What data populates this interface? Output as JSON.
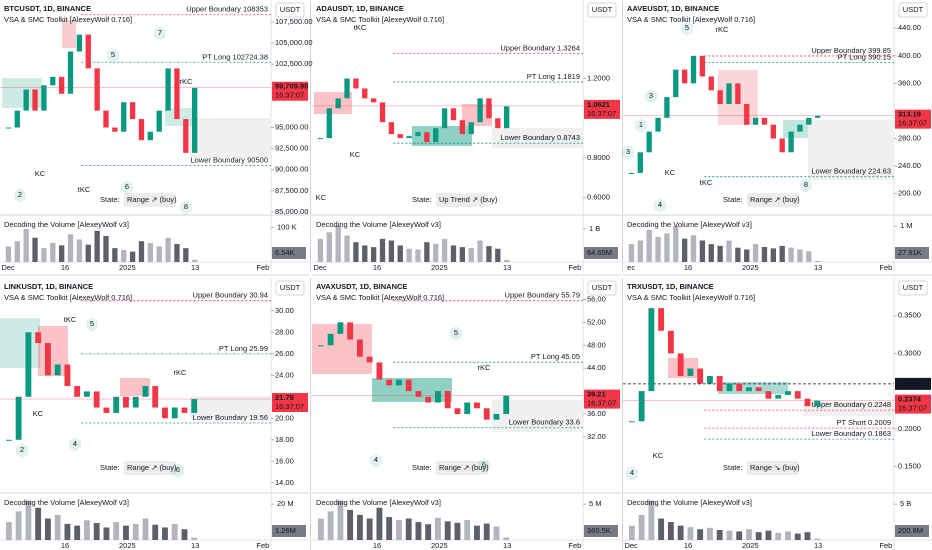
{
  "panels": [
    {
      "title": "BTCUSDT, 1D, BINANCE",
      "indicator": "VSA & SMC Toolkit [AlexeyWolf 0.716]",
      "currency": "USDT",
      "ylim": [
        84640,
        110100
      ],
      "yticks": [
        {
          "value": 107500,
          "label": "107,500.00"
        },
        {
          "value": 105000,
          "label": "105,000.00"
        },
        {
          "value": 102500,
          "label": "102,500.00"
        },
        {
          "value": 95000,
          "label": "95,000.00"
        },
        {
          "value": 92500,
          "label": "92,500.00"
        },
        {
          "value": 90000,
          "label": "90,000.00"
        },
        {
          "value": 87500,
          "label": "87,500.00"
        },
        {
          "value": 85000,
          "label": "85,000.00"
        }
      ],
      "price": {
        "value": 99709.9,
        "label": "99,709.90"
      },
      "timer": "16:37:07",
      "annotations": [
        {
          "text": "Upper Boundary 108353",
          "value": 108353,
          "color": "#f23645"
        },
        {
          "text": "PT Long 102724.38",
          "value": 102724.38,
          "color": "#089981"
        },
        {
          "text": "Lower Boundary 90500",
          "value": 90500,
          "color": "#089981"
        }
      ],
      "markers": [
        "2",
        "5",
        "7",
        "6",
        "8",
        "KC",
        "tKC",
        "rKC"
      ],
      "state_label": "State:",
      "state": "Range ↗ (buy)",
      "state_color": "#131722",
      "volume_title": "Decoding the Volume [AlexeyWolf v3]",
      "vlim": [
        0,
        124000
      ],
      "vticks": [
        {
          "value": 100000,
          "label": "100 K"
        }
      ],
      "volume_label": "6.54K",
      "xlabels": [
        "Dec",
        "16",
        "2025",
        "13",
        "Feb"
      ],
      "closes": [
        95000,
        97000,
        99500,
        97000,
        100000,
        101000,
        99000,
        104000,
        106000,
        102000,
        97000,
        95000,
        94500,
        98000,
        96000,
        93500,
        94500,
        97000,
        102000,
        96000,
        92000,
        99700
      ],
      "volumes": [
        45000,
        60000,
        95000,
        70000,
        40000,
        55000,
        48000,
        80000,
        65000,
        50000,
        90000,
        75000,
        40000,
        35000,
        30000,
        60000,
        55000,
        45000,
        70000,
        52000,
        40000,
        6540
      ]
    },
    {
      "title": "ADAUSDT, 1D, BINANCE",
      "indicator": "VSA & SMC Toolkit [AlexeyWolf 0.716]",
      "currency": "USDT",
      "ylim": [
        0.513,
        1.595
      ],
      "yticks": [
        {
          "value": 1.2,
          "label": "1.2000"
        },
        {
          "value": 0.8,
          "label": "0.8000"
        },
        {
          "value": 0.6,
          "label": "0.6000"
        }
      ],
      "price": {
        "value": 1.0621,
        "label": "1.0621"
      },
      "timer": "16:37:07",
      "annotations": [
        {
          "text": "Upper Boundary 1.3264",
          "value": 1.3264,
          "color": "#f23645"
        },
        {
          "text": "PT Long 1.1819",
          "value": 1.1819,
          "color": "#089981"
        },
        {
          "text": "Lower Boundary 0.8743",
          "value": 0.8743,
          "color": "#089981"
        }
      ],
      "markers": [
        "tKC",
        "KC",
        "KC"
      ],
      "state_label": "State:",
      "state": "Up Trend ↗ (buy)",
      "state_color": "#089981",
      "volume_title": "Decoding the Volume [AlexeyWolf v3]",
      "vlim": [
        0,
        1300000000
      ],
      "vticks": [
        {
          "value": 1000000000,
          "label": "1 B"
        }
      ],
      "volume_label": "64.65M",
      "xlabels": [
        "Dec",
        "16",
        "2025",
        "13",
        "Feb"
      ],
      "closes": [
        0.9,
        1.05,
        1.1,
        1.2,
        1.15,
        1.1,
        1.08,
        0.98,
        0.92,
        0.9,
        0.91,
        0.93,
        0.88,
        0.95,
        1.05,
        0.99,
        0.92,
        0.98,
        1.1,
        1.0,
        0.95,
        1.06
      ],
      "volumes": [
        700000000,
        900000000,
        1100000000,
        800000000,
        600000000,
        500000000,
        450000000,
        700000000,
        650000000,
        500000000,
        400000000,
        380000000,
        600000000,
        550000000,
        700000000,
        500000000,
        450000000,
        420000000,
        650000000,
        480000000,
        400000000,
        64650000
      ]
    },
    {
      "title": "AAVEUSDT, 1D, BINANCE",
      "indicator": "VSA & SMC Toolkit [AlexeyWolf 0.716]",
      "currency": "USDT",
      "ylim": [
        169,
        481
      ],
      "yticks": [
        {
          "value": 440,
          "label": "440.00"
        },
        {
          "value": 400,
          "label": "400.00"
        },
        {
          "value": 360,
          "label": "360.00"
        },
        {
          "value": 280,
          "label": "280.00"
        },
        {
          "value": 240,
          "label": "240.00"
        },
        {
          "value": 200,
          "label": "200.00"
        }
      ],
      "price": {
        "value": 313.19,
        "label": "313.19"
      },
      "timer": "16:37:07",
      "annotations": [
        {
          "text": "Upper Boundary 399.85",
          "value": 399.85,
          "color": "#f23645"
        },
        {
          "text": "PT Long 390.15",
          "value": 390.15,
          "color": "#089981"
        },
        {
          "text": "Lower Boundary 224.63",
          "value": 224.63,
          "color": "#089981"
        }
      ],
      "markers": [
        "5",
        "3",
        "1",
        "3",
        "4",
        "rKC",
        "KC",
        "tKC",
        "8"
      ],
      "state_label": "State:",
      "state": "Range ↗ (buy)",
      "state_color": "#131722",
      "volume_title": "Decoding the Volume [AlexeyWolf v3]",
      "vlim": [
        0,
        1200000
      ],
      "vticks": [
        {
          "value": 1000000,
          "label": "1 M"
        }
      ],
      "volume_label": "27.91K",
      "xlabels": [
        "ec",
        "16",
        "2025",
        "13",
        "Feb"
      ],
      "closes": [
        230,
        260,
        290,
        310,
        340,
        380,
        360,
        400,
        370,
        350,
        330,
        360,
        330,
        300,
        310,
        300,
        280,
        260,
        290,
        300,
        310,
        313
      ],
      "volumes": [
        500000,
        600000,
        900000,
        700000,
        800000,
        1000000,
        650000,
        750000,
        600000,
        500000,
        450000,
        600000,
        400000,
        350000,
        500000,
        420000,
        380000,
        450000,
        400000,
        350000,
        300000,
        27910
      ]
    },
    {
      "title": "LINKUSDT, 1D, BINANCE",
      "indicator": "VSA & SMC Toolkit [AlexeyWolf 0.716]",
      "currency": "USDT",
      "ylim": [
        13.05,
        33.05
      ],
      "yticks": [
        {
          "value": 30,
          "label": "30.00"
        },
        {
          "value": 28,
          "label": "28.00"
        },
        {
          "value": 26,
          "label": "26.00"
        },
        {
          "value": 24,
          "label": "24.00"
        },
        {
          "value": 20,
          "label": "20.00"
        },
        {
          "value": 18,
          "label": "18.00"
        },
        {
          "value": 16,
          "label": "16.00"
        },
        {
          "value": 14,
          "label": "14.00"
        }
      ],
      "price": {
        "value": 21.79,
        "label": "21.79"
      },
      "timer": "16:37:07",
      "annotations": [
        {
          "text": "Upper Boundary 30.94",
          "value": 30.94,
          "color": "#f23645"
        },
        {
          "text": "PT Long 25.99",
          "value": 25.99,
          "color": "#089981"
        },
        {
          "text": "Lower Boundary 19.56",
          "value": 19.56,
          "color": "#089981"
        }
      ],
      "markers": [
        "2",
        "4",
        "5",
        "tKC",
        "KC",
        "rKC",
        "6"
      ],
      "state_label": "State:",
      "state": "Range ↗ (buy)",
      "state_color": "#131722",
      "volume_title": "Decoding the Volume [AlexeyWolf v3]",
      "vlim": [
        0,
        24000000
      ],
      "vticks": [
        {
          "value": 20000000,
          "label": "20 M"
        }
      ],
      "volume_label": "1.26M",
      "xlabels": [
        "16",
        "2025",
        "13",
        "Feb"
      ],
      "closes": [
        18,
        22,
        28,
        27,
        24,
        25,
        23,
        22,
        22.5,
        21,
        20.5,
        22,
        21,
        22,
        23,
        21,
        20,
        21,
        20.5,
        21.79
      ],
      "volumes": [
        10000000,
        16000000,
        22000000,
        18000000,
        12000000,
        14000000,
        9000000,
        8000000,
        11000000,
        9500000,
        7000000,
        10000000,
        8000000,
        9000000,
        12000000,
        8500000,
        7000000,
        9000000,
        6000000,
        1260000
      ]
    },
    {
      "title": "AVAXUSDT, 1D, BINANCE",
      "indicator": "VSA & SMC Toolkit [AlexeyWolf 0.716]",
      "currency": "USDT",
      "ylim": [
        22.2,
        59.75
      ],
      "yticks": [
        {
          "value": 56,
          "label": "56.00"
        },
        {
          "value": 52,
          "label": "52.00"
        },
        {
          "value": 48,
          "label": "48.00"
        },
        {
          "value": 44,
          "label": "44.00"
        },
        {
          "value": 36,
          "label": "36.00"
        },
        {
          "value": 32,
          "label": "32.00"
        }
      ],
      "price": {
        "value": 39.21,
        "label": "39.21"
      },
      "timer": "16:37:07",
      "annotations": [
        {
          "text": "Upper Boundary 55.79",
          "value": 55.79,
          "color": "#f23645"
        },
        {
          "text": "PT Long 45.05",
          "value": 45.05,
          "color": "#089981"
        },
        {
          "text": "Lower Boundary 33.6",
          "value": 33.6,
          "color": "#089981"
        }
      ],
      "markers": [
        "5",
        "4",
        "rKC",
        "6"
      ],
      "state_label": "State:",
      "state": "Range ↗ (buy)",
      "state_color": "#131722",
      "volume_title": "Decoding the Volume [AlexeyWolf v3]",
      "vlim": [
        0,
        6000000
      ],
      "vticks": [
        {
          "value": 5000000,
          "label": "5 M"
        }
      ],
      "volume_label": "360.5K",
      "xlabels": [
        "16",
        "2025",
        "13",
        "Feb"
      ],
      "closes": [
        48,
        50,
        52,
        49,
        46,
        45,
        42,
        41,
        42,
        40,
        39,
        38,
        40,
        37,
        36,
        38,
        37,
        35,
        36,
        39.21
      ],
      "volumes": [
        3000000,
        4000000,
        5500000,
        4200000,
        3500000,
        3000000,
        4500000,
        3200000,
        2800000,
        3000000,
        2500000,
        2200000,
        3100000,
        2600000,
        2400000,
        2800000,
        2000000,
        2300000,
        1900000,
        360500
      ]
    },
    {
      "title": "TRXUSDT, 1D, BINANCE",
      "indicator": "VSA & SMC Toolkit [AlexeyWolf 0.716]",
      "currency": "USDT",
      "ylim": [
        0.1149,
        0.4
      ],
      "yticks": [
        {
          "value": 0.35,
          "label": "0.3500"
        },
        {
          "value": 0.3,
          "label": "0.3000"
        },
        {
          "value": 0.2,
          "label": "0.2000"
        },
        {
          "value": 0.15,
          "label": "0.1500"
        }
      ],
      "price": {
        "value": 0.2374,
        "label": "0.2374"
      },
      "timer": "16:37:07",
      "annotations": [
        {
          "text": "0.2596",
          "value": 0.2596,
          "color": "#131722",
          "style": "axis"
        },
        {
          "text": "Upper Boundary 0.2248",
          "value": 0.2248,
          "color": "#f23645"
        },
        {
          "text": "PT Short 0.2009",
          "value": 0.2009,
          "color": "#f23645"
        },
        {
          "text": "Lower Boundary 0.1863",
          "value": 0.1863,
          "color": "#089981"
        }
      ],
      "markers": [
        "4",
        "KC"
      ],
      "state_label": "State:",
      "state": "Range ↘ (buy)",
      "state_color": "#089981",
      "volume_title": "Decoding the Volume [AlexeyWolf v3]",
      "vlim": [
        0,
        6000000000
      ],
      "vticks": [
        {
          "value": 5000000000,
          "label": "5 B"
        }
      ],
      "volume_label": "200.8M",
      "xlabels": [
        "Dec",
        "16",
        "2025",
        "13",
        "Feb"
      ],
      "closes": [
        0.21,
        0.25,
        0.36,
        0.33,
        0.3,
        0.27,
        0.28,
        0.26,
        0.27,
        0.25,
        0.26,
        0.25,
        0.255,
        0.25,
        0.24,
        0.245,
        0.25,
        0.24,
        0.23,
        0.2374
      ],
      "volumes": [
        2000000000,
        3500000000,
        5500000000,
        3000000000,
        2500000000,
        2000000000,
        1800000000,
        1500000000,
        1700000000,
        1400000000,
        1300000000,
        1200000000,
        1500000000,
        1100000000,
        1300000000,
        1000000000,
        1200000000,
        900000000,
        1100000000,
        200800000
      ]
    }
  ]
}
